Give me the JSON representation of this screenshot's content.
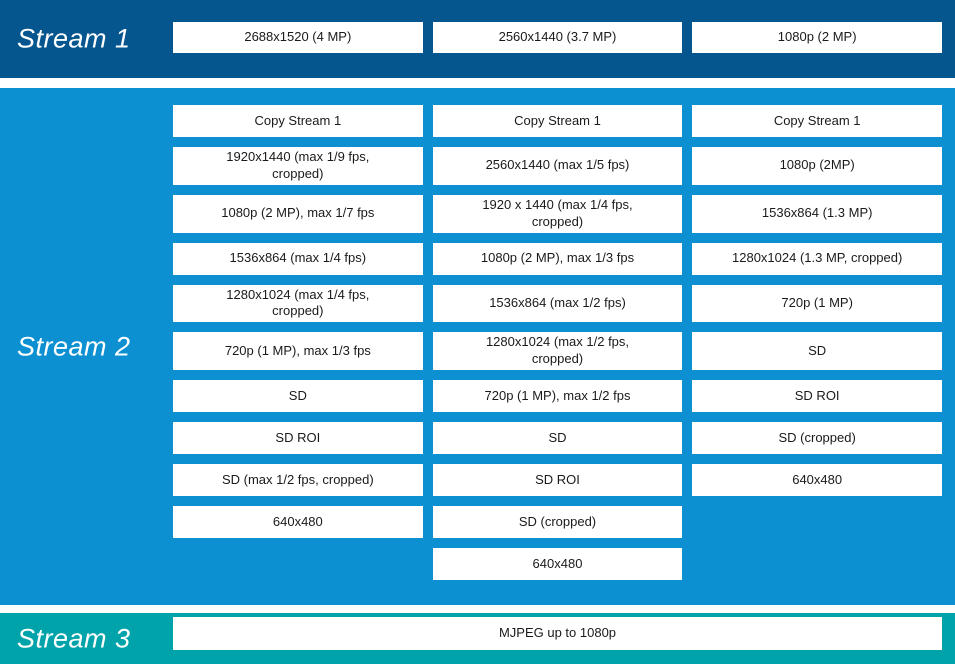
{
  "colors": {
    "stream1_bg": "#05568F",
    "stream2_bg": "#0C90D1",
    "stream3_bg": "#00A3A9",
    "option_box_bg": "#FFFFFF",
    "option_text": "#1A1A1A",
    "label_text": "#FFFFFF"
  },
  "stream1": {
    "label": "Stream 1",
    "options": [
      "2688x1520 (4 MP)",
      "2560x1440 (3.7 MP)",
      "1080p (2 MP)"
    ]
  },
  "stream2": {
    "label": "Stream 2",
    "rows": [
      [
        "Copy Stream 1",
        "Copy Stream 1",
        "Copy Stream 1"
      ],
      [
        "1920x1440 (max 1/9 fps,\ncropped)",
        "2560x1440 (max 1/5 fps)",
        "1080p (2MP)"
      ],
      [
        "1080p (2 MP), max 1/7 fps",
        "1920 x 1440 (max 1/4 fps,\ncropped)",
        "1536x864 (1.3 MP)"
      ],
      [
        "1536x864 (max 1/4 fps)",
        "1080p (2 MP), max 1/3 fps",
        "1280x1024 (1.3 MP, cropped)"
      ],
      [
        "1280x1024 (max 1/4 fps,\ncropped)",
        "1536x864 (max 1/2 fps)",
        "720p (1 MP)"
      ],
      [
        "720p (1 MP), max 1/3 fps",
        "1280x1024 (max 1/2 fps,\ncropped)",
        "SD"
      ],
      [
        "SD",
        "720p (1 MP), max 1/2 fps",
        "SD ROI"
      ],
      [
        "SD ROI",
        "SD",
        "SD (cropped)"
      ],
      [
        "SD (max 1/2 fps, cropped)",
        "SD ROI",
        "640x480"
      ],
      [
        "640x480",
        "SD (cropped)",
        null
      ],
      [
        null,
        "640x480",
        null
      ]
    ]
  },
  "stream3": {
    "label": "Stream 3",
    "options": [
      "MJPEG up to 1080p"
    ]
  }
}
